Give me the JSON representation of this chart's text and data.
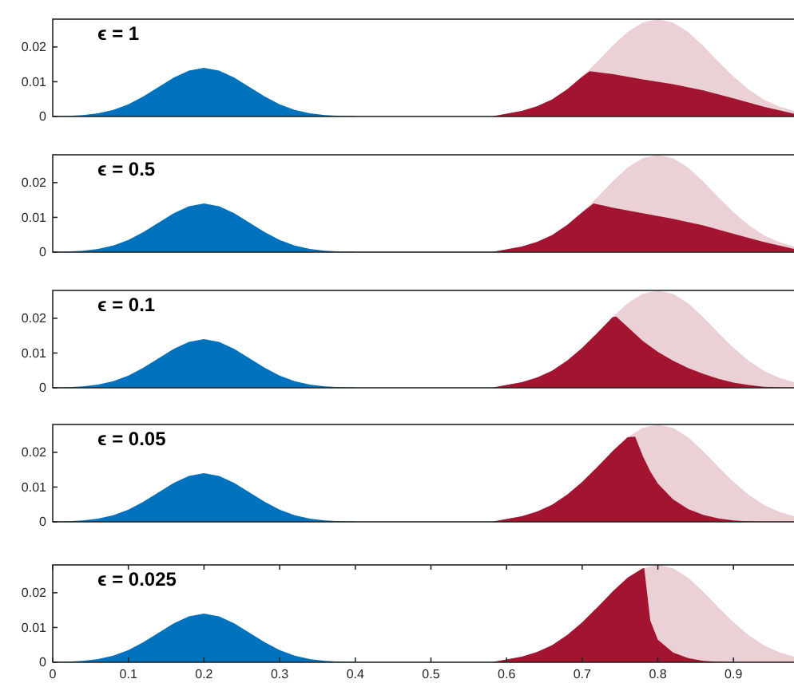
{
  "chart_data": [
    {
      "type": "area",
      "annotations": [
        "ϵ = 1"
      ],
      "xlim": [
        0,
        0.98
      ],
      "ylim": [
        0,
        0.028
      ],
      "yticks": [
        0,
        0.01,
        0.02
      ],
      "tick_labels": "y",
      "grid": false,
      "series": [
        {
          "color": "#ebd0d5",
          "x": [
            0.58,
            0.6,
            0.62,
            0.64,
            0.66,
            0.68,
            0.7,
            0.72,
            0.74,
            0.76,
            0.78,
            0.8,
            0.82,
            0.84,
            0.86,
            0.88,
            0.9,
            0.92,
            0.94,
            0.96,
            0.98
          ],
          "values": [
            0,
            0.0008,
            0.0016,
            0.0029,
            0.0049,
            0.0078,
            0.0115,
            0.0158,
            0.0203,
            0.0243,
            0.027,
            0.028,
            0.027,
            0.0243,
            0.0203,
            0.0158,
            0.0115,
            0.0078,
            0.0049,
            0.0029,
            0.0016
          ]
        },
        {
          "color": "#a2142f",
          "x": [
            0.58,
            0.6,
            0.62,
            0.64,
            0.66,
            0.68,
            0.7,
            0.71,
            0.74,
            0.78,
            0.82,
            0.86,
            0.9,
            0.94,
            0.98
          ],
          "values": [
            0,
            0.0008,
            0.0016,
            0.0029,
            0.0049,
            0.0078,
            0.0115,
            0.013,
            0.0122,
            0.0107,
            0.0093,
            0.0075,
            0.0052,
            0.0028,
            0.0008
          ]
        },
        {
          "color": "#0072bd",
          "x": [
            0,
            0.02,
            0.04,
            0.06,
            0.08,
            0.1,
            0.12,
            0.14,
            0.16,
            0.18,
            0.2,
            0.22,
            0.24,
            0.26,
            0.28,
            0.3,
            0.32,
            0.34,
            0.36,
            0.38,
            0.4
          ],
          "values": [
            0.0001,
            0.0002,
            0.0004,
            0.0009,
            0.0019,
            0.0035,
            0.0058,
            0.0085,
            0.0112,
            0.0132,
            0.014,
            0.0132,
            0.0112,
            0.0085,
            0.0058,
            0.0035,
            0.0019,
            0.0009,
            0.0004,
            0.0002,
            0.0001
          ]
        }
      ]
    },
    {
      "type": "area",
      "annotations": [
        "ϵ = 0.5"
      ],
      "xlim": [
        0,
        0.98
      ],
      "ylim": [
        0,
        0.028
      ],
      "yticks": [
        0,
        0.01,
        0.02
      ],
      "tick_labels": "y",
      "grid": false,
      "series": [
        {
          "color": "#ebd0d5",
          "x": [
            0.58,
            0.6,
            0.62,
            0.64,
            0.66,
            0.68,
            0.7,
            0.72,
            0.74,
            0.76,
            0.78,
            0.8,
            0.82,
            0.84,
            0.86,
            0.88,
            0.9,
            0.92,
            0.94,
            0.96,
            0.98
          ],
          "values": [
            0,
            0.0008,
            0.0016,
            0.0029,
            0.0049,
            0.0078,
            0.0115,
            0.0158,
            0.0203,
            0.0243,
            0.027,
            0.028,
            0.027,
            0.0243,
            0.0203,
            0.0158,
            0.0115,
            0.0078,
            0.0049,
            0.0029,
            0.0016
          ]
        },
        {
          "color": "#a2142f",
          "x": [
            0.58,
            0.6,
            0.62,
            0.64,
            0.66,
            0.68,
            0.7,
            0.715,
            0.74,
            0.78,
            0.82,
            0.86,
            0.9,
            0.94,
            0.98
          ],
          "values": [
            0,
            0.0008,
            0.0016,
            0.0029,
            0.0049,
            0.0078,
            0.0115,
            0.014,
            0.0128,
            0.0112,
            0.0096,
            0.0077,
            0.0053,
            0.0029,
            0.0009
          ]
        },
        {
          "color": "#0072bd",
          "x": [
            0,
            0.02,
            0.04,
            0.06,
            0.08,
            0.1,
            0.12,
            0.14,
            0.16,
            0.18,
            0.2,
            0.22,
            0.24,
            0.26,
            0.28,
            0.3,
            0.32,
            0.34,
            0.36,
            0.38,
            0.4
          ],
          "values": [
            0.0001,
            0.0002,
            0.0004,
            0.0009,
            0.0019,
            0.0035,
            0.0058,
            0.0085,
            0.0112,
            0.0132,
            0.014,
            0.0132,
            0.0112,
            0.0085,
            0.0058,
            0.0035,
            0.0019,
            0.0009,
            0.0004,
            0.0002,
            0.0001
          ]
        }
      ]
    },
    {
      "type": "area",
      "annotations": [
        "ϵ = 0.1"
      ],
      "xlim": [
        0,
        0.98
      ],
      "ylim": [
        0,
        0.028
      ],
      "yticks": [
        0,
        0.01,
        0.02
      ],
      "tick_labels": "y",
      "grid": false,
      "series": [
        {
          "color": "#ebd0d5",
          "x": [
            0.58,
            0.6,
            0.62,
            0.64,
            0.66,
            0.68,
            0.7,
            0.72,
            0.74,
            0.76,
            0.78,
            0.8,
            0.82,
            0.84,
            0.86,
            0.88,
            0.9,
            0.92,
            0.94,
            0.96,
            0.98
          ],
          "values": [
            0,
            0.0008,
            0.0016,
            0.0029,
            0.0049,
            0.0078,
            0.0115,
            0.0158,
            0.0203,
            0.0243,
            0.027,
            0.028,
            0.027,
            0.0243,
            0.0203,
            0.0158,
            0.0115,
            0.0078,
            0.0049,
            0.0029,
            0.0016
          ]
        },
        {
          "color": "#a2142f",
          "x": [
            0.58,
            0.6,
            0.62,
            0.64,
            0.66,
            0.68,
            0.7,
            0.72,
            0.74,
            0.745,
            0.76,
            0.78,
            0.8,
            0.82,
            0.84,
            0.86,
            0.88,
            0.9,
            0.92,
            0.94,
            0.96,
            0.98
          ],
          "values": [
            0,
            0.0008,
            0.0016,
            0.0029,
            0.0049,
            0.0078,
            0.0115,
            0.0158,
            0.0203,
            0.0205,
            0.0175,
            0.0135,
            0.0103,
            0.0078,
            0.0057,
            0.004,
            0.0026,
            0.0015,
            0.0008,
            0.0003,
            0.0001,
            0
          ]
        },
        {
          "color": "#0072bd",
          "x": [
            0,
            0.02,
            0.04,
            0.06,
            0.08,
            0.1,
            0.12,
            0.14,
            0.16,
            0.18,
            0.2,
            0.22,
            0.24,
            0.26,
            0.28,
            0.3,
            0.32,
            0.34,
            0.36,
            0.38,
            0.4
          ],
          "values": [
            0.0001,
            0.0002,
            0.0004,
            0.0009,
            0.0019,
            0.0035,
            0.0058,
            0.0085,
            0.0112,
            0.0132,
            0.014,
            0.0132,
            0.0112,
            0.0085,
            0.0058,
            0.0035,
            0.0019,
            0.0009,
            0.0004,
            0.0002,
            0.0001
          ]
        }
      ]
    },
    {
      "type": "area",
      "annotations": [
        "ϵ = 0.05"
      ],
      "xlim": [
        0,
        0.98
      ],
      "ylim": [
        0,
        0.028
      ],
      "yticks": [
        0,
        0.01,
        0.02
      ],
      "tick_labels": "y",
      "grid": false,
      "series": [
        {
          "color": "#ebd0d5",
          "x": [
            0.58,
            0.6,
            0.62,
            0.64,
            0.66,
            0.68,
            0.7,
            0.72,
            0.74,
            0.76,
            0.78,
            0.8,
            0.82,
            0.84,
            0.86,
            0.88,
            0.9,
            0.92,
            0.94,
            0.96,
            0.98
          ],
          "values": [
            0,
            0.0008,
            0.0016,
            0.0029,
            0.0049,
            0.0078,
            0.0115,
            0.0158,
            0.0203,
            0.0243,
            0.027,
            0.028,
            0.027,
            0.0243,
            0.0203,
            0.0158,
            0.0115,
            0.0078,
            0.0049,
            0.0029,
            0.0016
          ]
        },
        {
          "color": "#a2142f",
          "x": [
            0.58,
            0.6,
            0.62,
            0.64,
            0.66,
            0.68,
            0.7,
            0.72,
            0.74,
            0.76,
            0.77,
            0.78,
            0.79,
            0.8,
            0.82,
            0.84,
            0.86,
            0.88,
            0.9,
            0.92,
            0.94
          ],
          "values": [
            0,
            0.0008,
            0.0016,
            0.0029,
            0.0049,
            0.0078,
            0.0115,
            0.0158,
            0.0203,
            0.0243,
            0.0245,
            0.019,
            0.0145,
            0.011,
            0.0065,
            0.0037,
            0.002,
            0.001,
            0.0004,
            0.0001,
            0
          ]
        },
        {
          "color": "#0072bd",
          "x": [
            0,
            0.02,
            0.04,
            0.06,
            0.08,
            0.1,
            0.12,
            0.14,
            0.16,
            0.18,
            0.2,
            0.22,
            0.24,
            0.26,
            0.28,
            0.3,
            0.32,
            0.34,
            0.36,
            0.38,
            0.4
          ],
          "values": [
            0.0001,
            0.0002,
            0.0004,
            0.0009,
            0.0019,
            0.0035,
            0.0058,
            0.0085,
            0.0112,
            0.0132,
            0.014,
            0.0132,
            0.0112,
            0.0085,
            0.0058,
            0.0035,
            0.0019,
            0.0009,
            0.0004,
            0.0002,
            0.0001
          ]
        }
      ]
    },
    {
      "type": "area",
      "annotations": [
        "ϵ = 0.025"
      ],
      "xlim": [
        0,
        0.98
      ],
      "ylim": [
        0,
        0.028
      ],
      "xticks": [
        0,
        0.1,
        0.2,
        0.3,
        0.4,
        0.5,
        0.6,
        0.7,
        0.8,
        0.9
      ],
      "yticks": [
        0,
        0.01,
        0.02
      ],
      "grid": false,
      "series": [
        {
          "color": "#ebd0d5",
          "x": [
            0.58,
            0.6,
            0.62,
            0.64,
            0.66,
            0.68,
            0.7,
            0.72,
            0.74,
            0.76,
            0.78,
            0.8,
            0.82,
            0.84,
            0.86,
            0.88,
            0.9,
            0.92,
            0.94,
            0.96,
            0.98
          ],
          "values": [
            0,
            0.0008,
            0.0016,
            0.0029,
            0.0049,
            0.0078,
            0.0115,
            0.0158,
            0.0203,
            0.0243,
            0.027,
            0.028,
            0.027,
            0.0243,
            0.0203,
            0.0158,
            0.0115,
            0.0078,
            0.0049,
            0.0029,
            0.0016
          ]
        },
        {
          "color": "#a2142f",
          "x": [
            0.58,
            0.6,
            0.62,
            0.64,
            0.66,
            0.68,
            0.7,
            0.72,
            0.74,
            0.76,
            0.78,
            0.782,
            0.79,
            0.8,
            0.82,
            0.84,
            0.86,
            0.88,
            0.9
          ],
          "values": [
            0,
            0.0008,
            0.0016,
            0.0029,
            0.0049,
            0.0078,
            0.0115,
            0.0158,
            0.0203,
            0.0243,
            0.027,
            0.027,
            0.012,
            0.0065,
            0.0028,
            0.0012,
            0.0004,
            0.0001,
            0
          ]
        },
        {
          "color": "#0072bd",
          "x": [
            0,
            0.02,
            0.04,
            0.06,
            0.08,
            0.1,
            0.12,
            0.14,
            0.16,
            0.18,
            0.2,
            0.22,
            0.24,
            0.26,
            0.28,
            0.3,
            0.32,
            0.34,
            0.36,
            0.38,
            0.4
          ],
          "values": [
            0.0001,
            0.0002,
            0.0004,
            0.0009,
            0.0019,
            0.0035,
            0.0058,
            0.0085,
            0.0112,
            0.0132,
            0.014,
            0.0132,
            0.0112,
            0.0085,
            0.0058,
            0.0035,
            0.0019,
            0.0009,
            0.0004,
            0.0002,
            0.0001
          ]
        }
      ]
    }
  ]
}
